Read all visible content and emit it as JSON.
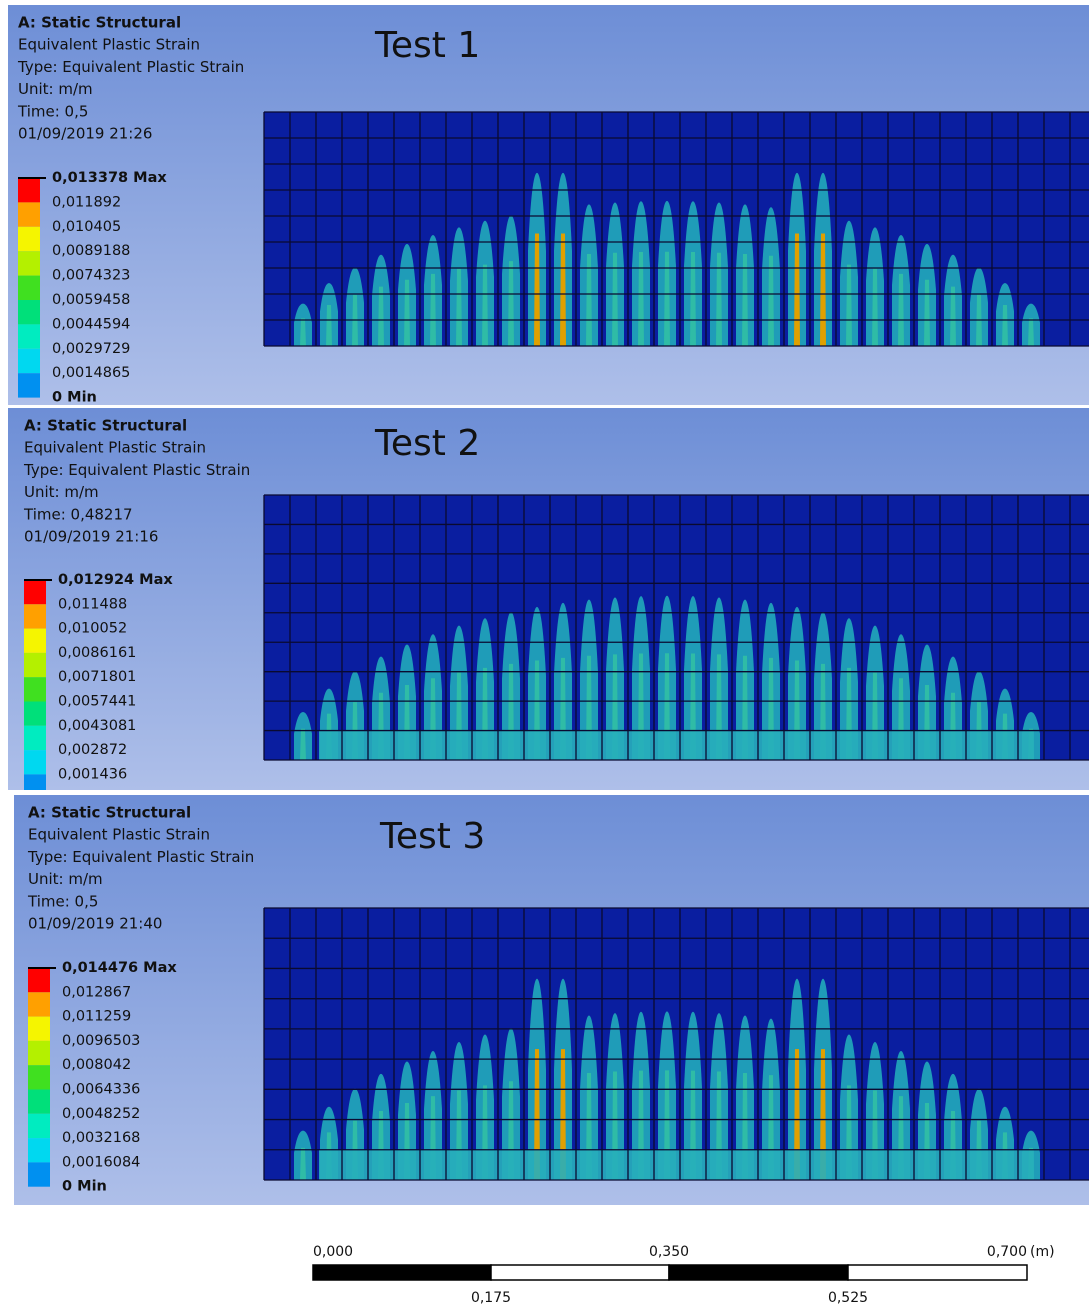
{
  "panels": [
    {
      "title": "Test 1",
      "header": [
        "A: Static Structural",
        "Equivalent Plastic Strain",
        "Type: Equivalent Plastic Strain",
        "Unit: m/m",
        "Time: 0,5",
        "01/09/2019 21:26"
      ],
      "legend": [
        "0,013378 Max",
        "0,011892",
        "0,010405",
        "0,0089188",
        "0,0074323",
        "0,0059458",
        "0,0044594",
        "0,0029729",
        "0,0014865",
        "0 Min"
      ]
    },
    {
      "title": "Test 2",
      "header": [
        "A: Static Structural",
        "Equivalent Plastic Strain",
        "Type: Equivalent Plastic Strain",
        "Unit: m/m",
        "Time: 0,48217",
        "01/09/2019 21:16"
      ],
      "legend": [
        "0,012924 Max",
        "0,011488",
        "0,010052",
        "0,0086161",
        "0,0071801",
        "0,0057441",
        "0,0043081",
        "0,002872",
        "0,001436"
      ]
    },
    {
      "title": "Test 3",
      "header": [
        "A: Static Structural",
        "Equivalent Plastic Strain",
        "Type: Equivalent Plastic Strain",
        "Unit: m/m",
        "Time: 0,5",
        "01/09/2019 21:40"
      ],
      "legend": [
        "0,014476 Max",
        "0,012867",
        "0,011259",
        "0,0096503",
        "0,008042",
        "0,0064336",
        "0,0048252",
        "0,0032168",
        "0,0016084",
        "0 Min"
      ]
    }
  ],
  "scale_bar": {
    "top_labels": [
      "0,000",
      "0,350",
      "0,700"
    ],
    "unit": "(m)",
    "bottom_labels": [
      "0,175",
      "0,525"
    ]
  }
}
